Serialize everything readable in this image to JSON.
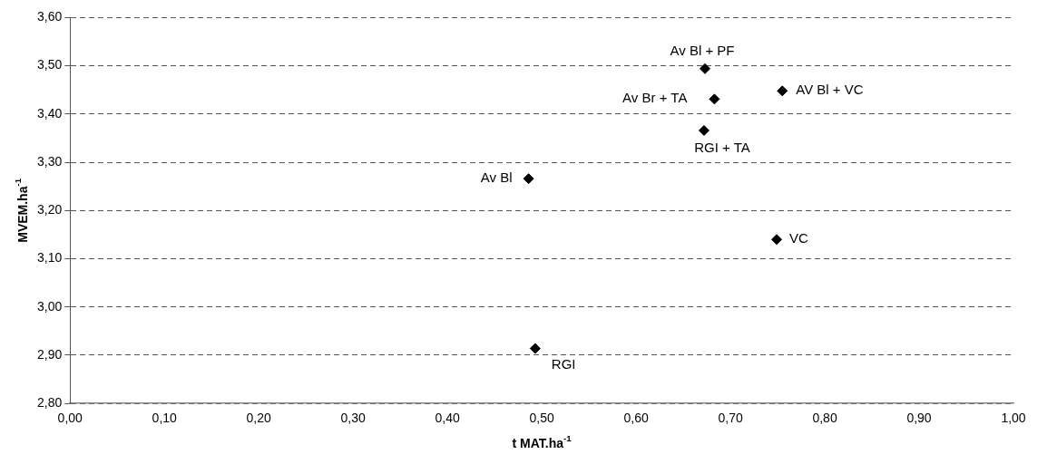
{
  "chart_data": {
    "type": "scatter",
    "xlabel": "t MAT.ha$^{-1}$",
    "ylabel": "MVEM.ha$^{-1}$",
    "x": [
      0.673,
      0.683,
      0.755,
      0.672,
      0.486,
      0.749,
      0.493
    ],
    "series": [
      {
        "color": "#000000",
        "values": [
          3.494,
          3.431,
          3.448,
          3.366,
          3.266,
          3.14,
          2.914
        ]
      }
    ],
    "annotations": [
      {
        "text": "Av Bl + PF",
        "x": 0.673,
        "y": 3.494
      },
      {
        "text": "Av Br + TA",
        "x": 0.683,
        "y": 3.431
      },
      {
        "text": "AV Bl + VC",
        "x": 0.755,
        "y": 3.448
      },
      {
        "text": "RGI + TA",
        "x": 0.672,
        "y": 3.366
      },
      {
        "text": "Av Bl",
        "x": 0.486,
        "y": 3.266
      },
      {
        "text": "VC",
        "x": 0.749,
        "y": 3.14
      },
      {
        "text": "RGI",
        "x": 0.493,
        "y": 2.914
      }
    ],
    "xlim": [
      0,
      1
    ],
    "xticks": [
      {
        "value": 0,
        "label": "0,00"
      },
      {
        "value": 0.1,
        "label": "0,10"
      },
      {
        "value": 0.2,
        "label": "0,20"
      },
      {
        "value": 0.3,
        "label": "0,30"
      },
      {
        "value": 0.4,
        "label": "0,40"
      },
      {
        "value": 0.5,
        "label": "0,50"
      },
      {
        "value": 0.6,
        "label": "0,60"
      },
      {
        "value": 0.7,
        "label": "0,70"
      },
      {
        "value": 0.8,
        "label": "0,80"
      },
      {
        "value": 0.9,
        "label": "0,90"
      },
      {
        "value": 1,
        "label": "1,00"
      }
    ],
    "ylim": [
      2.8,
      3.6
    ],
    "yticks": [
      {
        "value": 2.8,
        "label": "2,80"
      },
      {
        "value": 2.9,
        "label": "2,90"
      },
      {
        "value": 3.0,
        "label": "3,00"
      },
      {
        "value": 3.1,
        "label": "3,10"
      },
      {
        "value": 3.2,
        "label": "3,20"
      },
      {
        "value": 3.3,
        "label": "3,30"
      },
      {
        "value": 3.4,
        "label": "3,40"
      },
      {
        "value": 3.5,
        "label": "3,50"
      },
      {
        "value": 3.6,
        "label": "3,60"
      }
    ],
    "grid": "y",
    "legend": false,
    "marker": "diamond"
  }
}
